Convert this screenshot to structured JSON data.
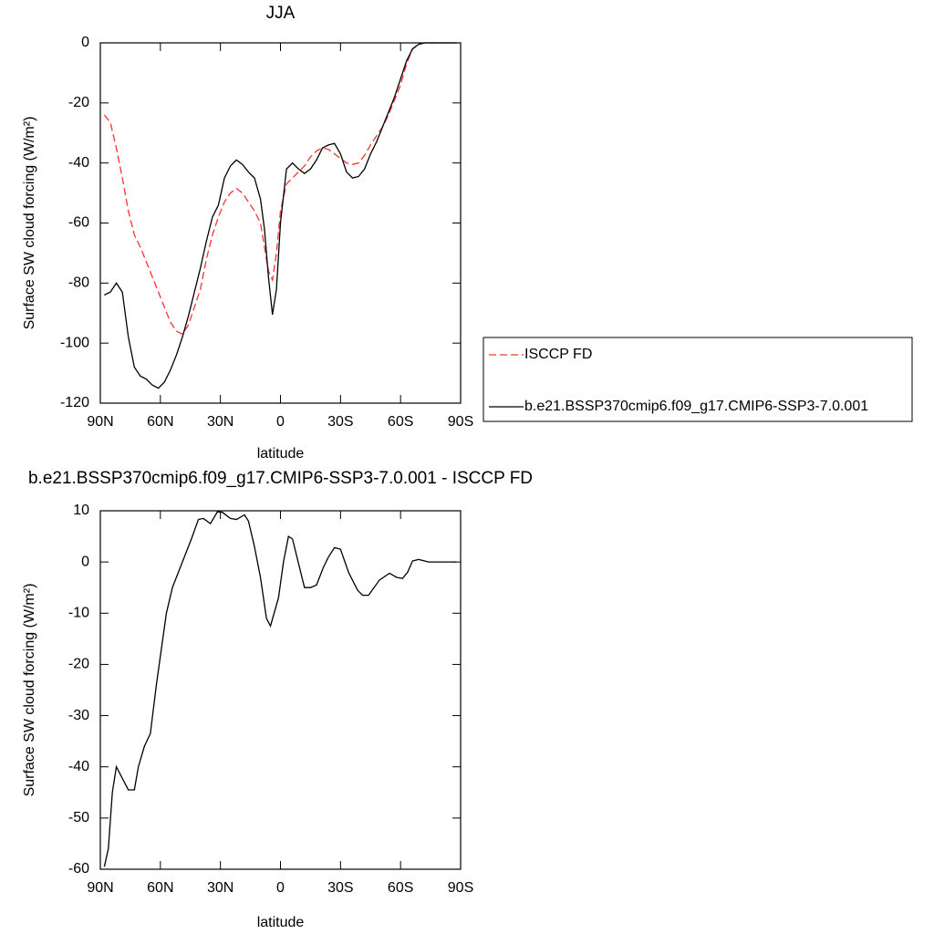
{
  "chart_data": [
    {
      "type": "line",
      "title": "JJA",
      "xlabel": "latitude",
      "ylabel": "Surface SW cloud forcing (W/m²)",
      "x": [
        88,
        85,
        82,
        79,
        76,
        73,
        70,
        67,
        64,
        61,
        58,
        55,
        52,
        49,
        46,
        43,
        40,
        37,
        34,
        31,
        28,
        25,
        22,
        19,
        16,
        13,
        10,
        8,
        6,
        4,
        2,
        0,
        -3,
        -6,
        -9,
        -12,
        -15,
        -18,
        -21,
        -24,
        -27,
        -30,
        -33,
        -36,
        -39,
        -42,
        -45,
        -48,
        -51,
        -54,
        -57,
        -60,
        -63,
        -66,
        -69,
        -72,
        -78,
        -84,
        -88
      ],
      "series": [
        {
          "name": "ISCCP FD",
          "color": "#ff3030",
          "style": "dashed",
          "values": [
            -24,
            -26.5,
            -35,
            -45,
            -56,
            -64,
            -68,
            -73,
            -78,
            -83,
            -88,
            -93,
            -96,
            -97,
            -94,
            -88,
            -82,
            -72,
            -64,
            -58,
            -53,
            -50,
            -48.5,
            -50,
            -53,
            -56,
            -60,
            -68,
            -76,
            -79,
            -70,
            -56,
            -47,
            -45,
            -43,
            -41,
            -38,
            -36,
            -35,
            -35.5,
            -37,
            -38.5,
            -40,
            -40.5,
            -40,
            -37.5,
            -34,
            -31,
            -28,
            -24,
            -19,
            -14,
            -7,
            -2,
            -0.5,
            0,
            0,
            0,
            0
          ]
        },
        {
          "name": "b.e21.BSSP370cmip6.f09_g17.CMIP6-SSP3-7.0.001",
          "color": "#000000",
          "style": "solid",
          "values": [
            -84,
            -83,
            -80,
            -83,
            -98,
            -108,
            -111,
            -112,
            -114,
            -115,
            -113,
            -109,
            -104,
            -98,
            -91,
            -83,
            -75,
            -66,
            -58,
            -54,
            -45,
            -41,
            -39,
            -40.5,
            -43,
            -45,
            -52,
            -62,
            -78,
            -90.5,
            -82,
            -60,
            -42,
            -40,
            -42,
            -43.5,
            -42,
            -39,
            -35,
            -34,
            -33.5,
            -37,
            -43,
            -45,
            -44.5,
            -42,
            -37,
            -33,
            -28,
            -23,
            -18,
            -12,
            -6,
            -2,
            -0.5,
            0,
            0,
            0,
            0
          ]
        }
      ],
      "xlim": [
        90,
        -90
      ],
      "xticks": [
        {
          "value": 90,
          "label": "90N"
        },
        {
          "value": 60,
          "label": "60N"
        },
        {
          "value": 30,
          "label": "30N"
        },
        0,
        {
          "value": -30,
          "label": "30S"
        },
        {
          "value": -60,
          "label": "60S"
        },
        {
          "value": -90,
          "label": "90S"
        }
      ],
      "ylim": [
        -120,
        0
      ],
      "yticks": [
        0,
        -20,
        -40,
        -60,
        -80,
        -100,
        -120
      ],
      "legend": "right"
    },
    {
      "type": "line",
      "title": "b.e21.BSSP370cmip6.f09_g17.CMIP6-SSP3-7.0.001 - ISCCP FD",
      "xlabel": "latitude",
      "ylabel": "Surface SW cloud forcing (W/m²)",
      "x": [
        88,
        86,
        84,
        82,
        78,
        76,
        73,
        71,
        68,
        65,
        62,
        57,
        54,
        49,
        44.5,
        41,
        38.5,
        35,
        31.5,
        29,
        25,
        22,
        18,
        16,
        13,
        10,
        7,
        5,
        1,
        -1.5,
        -4,
        -6,
        -12,
        -15,
        -18,
        -21.5,
        -24,
        -27,
        -30,
        -34,
        -38.5,
        -41,
        -44,
        -49.5,
        -54.5,
        -58,
        -61,
        -63.5,
        -66,
        -69,
        -74,
        -88
      ],
      "values": [
        -59.5,
        -56,
        -45,
        -40,
        -43,
        -44.5,
        -44.5,
        -40,
        -36,
        -33.5,
        -24,
        -10,
        -5,
        0,
        4.5,
        8.3,
        8.5,
        7.5,
        9.8,
        9.7,
        8.5,
        8.3,
        9.2,
        8,
        3,
        -3,
        -11,
        -12.5,
        -7,
        0,
        5,
        4.5,
        -5,
        -5,
        -4.5,
        -1,
        1,
        2.8,
        2.5,
        -2,
        -5.5,
        -6.5,
        -6.5,
        -3.5,
        -2.2,
        -3,
        -3.2,
        -2,
        0.2,
        0.5,
        0,
        0
      ],
      "color": "#000000",
      "xlim": [
        90,
        -90
      ],
      "xticks": [
        {
          "value": 90,
          "label": "90N"
        },
        {
          "value": 60,
          "label": "60N"
        },
        {
          "value": 30,
          "label": "30N"
        },
        0,
        {
          "value": -30,
          "label": "30S"
        },
        {
          "value": -60,
          "label": "60S"
        },
        {
          "value": -90,
          "label": "90S"
        }
      ],
      "ylim": [
        -60,
        10
      ],
      "yticks": [
        10,
        0,
        -10,
        -20,
        -30,
        -40,
        -50,
        -60
      ]
    }
  ]
}
